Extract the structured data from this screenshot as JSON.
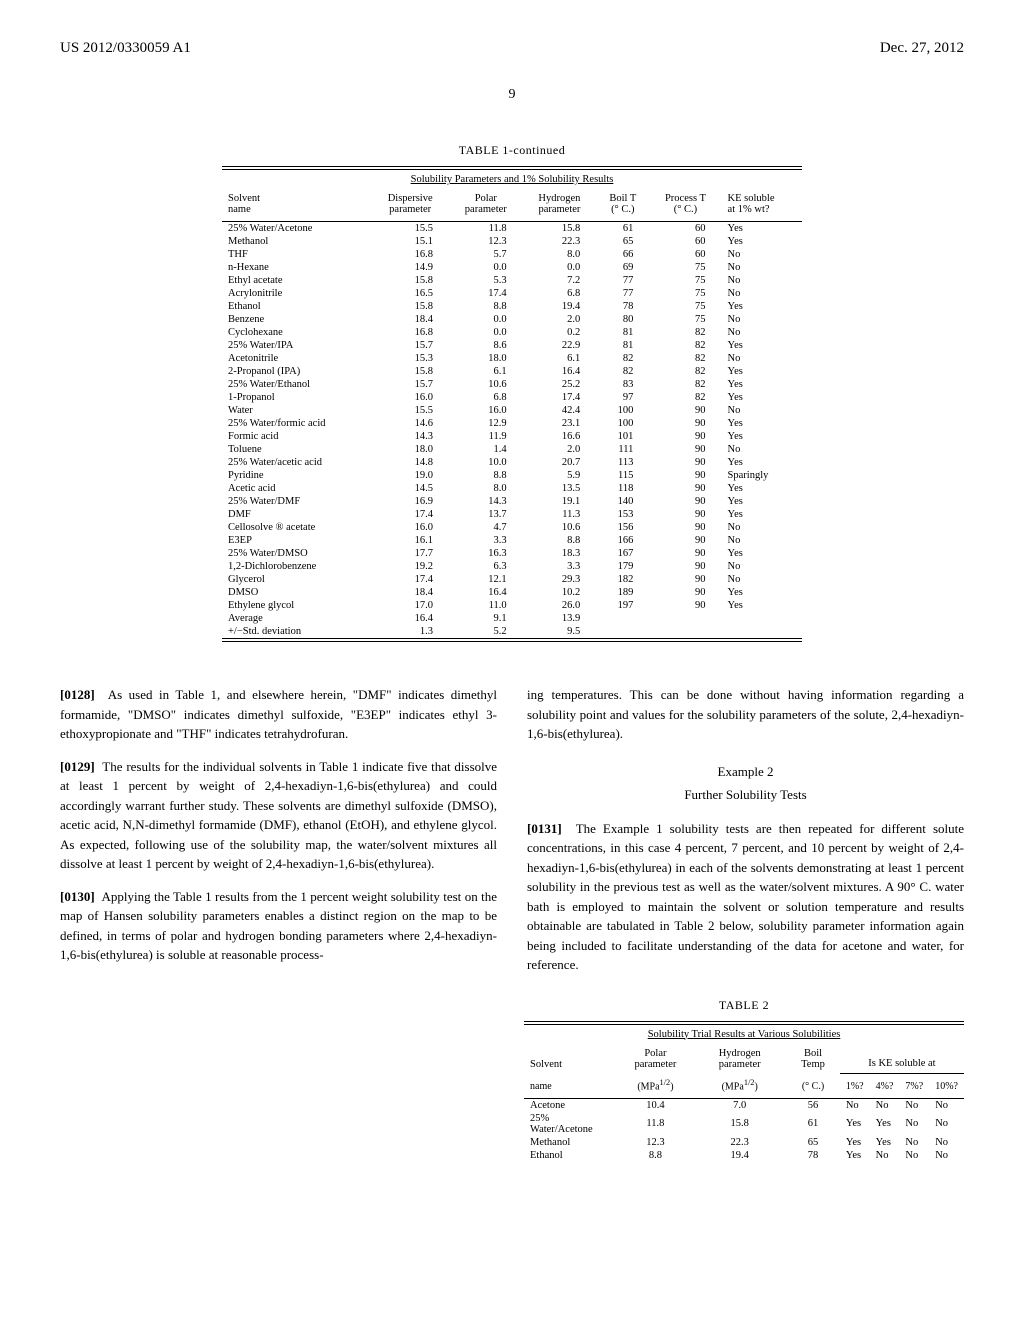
{
  "header": {
    "left": "US 2012/0330059 A1",
    "right": "Dec. 27, 2012"
  },
  "page_number": "9",
  "table1": {
    "title": "TABLE 1-continued",
    "subtitle": "Solubility Parameters and 1% Solubility Results",
    "columns": [
      "Solvent name",
      "Dispersive parameter",
      "Polar parameter",
      "Hydrogen parameter",
      "Boil T (° C.)",
      "Process T (° C.)",
      "KE soluble at 1% wt?"
    ],
    "rows": [
      [
        "25% Water/Acetone",
        "15.5",
        "11.8",
        "15.8",
        "61",
        "60",
        "Yes"
      ],
      [
        "Methanol",
        "15.1",
        "12.3",
        "22.3",
        "65",
        "60",
        "Yes"
      ],
      [
        "THF",
        "16.8",
        "5.7",
        "8.0",
        "66",
        "60",
        "No"
      ],
      [
        "n-Hexane",
        "14.9",
        "0.0",
        "0.0",
        "69",
        "75",
        "No"
      ],
      [
        "Ethyl acetate",
        "15.8",
        "5.3",
        "7.2",
        "77",
        "75",
        "No"
      ],
      [
        "Acrylonitrile",
        "16.5",
        "17.4",
        "6.8",
        "77",
        "75",
        "No"
      ],
      [
        "Ethanol",
        "15.8",
        "8.8",
        "19.4",
        "78",
        "75",
        "Yes"
      ],
      [
        "Benzene",
        "18.4",
        "0.0",
        "2.0",
        "80",
        "75",
        "No"
      ],
      [
        "Cyclohexane",
        "16.8",
        "0.0",
        "0.2",
        "81",
        "82",
        "No"
      ],
      [
        "25% Water/IPA",
        "15.7",
        "8.6",
        "22.9",
        "81",
        "82",
        "Yes"
      ],
      [
        "Acetonitrile",
        "15.3",
        "18.0",
        "6.1",
        "82",
        "82",
        "No"
      ],
      [
        "2-Propanol (IPA)",
        "15.8",
        "6.1",
        "16.4",
        "82",
        "82",
        "Yes"
      ],
      [
        "25% Water/Ethanol",
        "15.7",
        "10.6",
        "25.2",
        "83",
        "82",
        "Yes"
      ],
      [
        "1-Propanol",
        "16.0",
        "6.8",
        "17.4",
        "97",
        "82",
        "Yes"
      ],
      [
        "Water",
        "15.5",
        "16.0",
        "42.4",
        "100",
        "90",
        "No"
      ],
      [
        "25% Water/formic acid",
        "14.6",
        "12.9",
        "23.1",
        "100",
        "90",
        "Yes"
      ],
      [
        "Formic acid",
        "14.3",
        "11.9",
        "16.6",
        "101",
        "90",
        "Yes"
      ],
      [
        "Toluene",
        "18.0",
        "1.4",
        "2.0",
        "111",
        "90",
        "No"
      ],
      [
        "25% Water/acetic acid",
        "14.8",
        "10.0",
        "20.7",
        "113",
        "90",
        "Yes"
      ],
      [
        "Pyridine",
        "19.0",
        "8.8",
        "5.9",
        "115",
        "90",
        "Sparingly"
      ],
      [
        "Acetic acid",
        "14.5",
        "8.0",
        "13.5",
        "118",
        "90",
        "Yes"
      ],
      [
        "25% Water/DMF",
        "16.9",
        "14.3",
        "19.1",
        "140",
        "90",
        "Yes"
      ],
      [
        "DMF",
        "17.4",
        "13.7",
        "11.3",
        "153",
        "90",
        "Yes"
      ],
      [
        "Cellosolve ® acetate",
        "16.0",
        "4.7",
        "10.6",
        "156",
        "90",
        "No"
      ],
      [
        "E3EP",
        "16.1",
        "3.3",
        "8.8",
        "166",
        "90",
        "No"
      ],
      [
        "25% Water/DMSO",
        "17.7",
        "16.3",
        "18.3",
        "167",
        "90",
        "Yes"
      ],
      [
        "1,2-Dichlorobenzene",
        "19.2",
        "6.3",
        "3.3",
        "179",
        "90",
        "No"
      ],
      [
        "Glycerol",
        "17.4",
        "12.1",
        "29.3",
        "182",
        "90",
        "No"
      ],
      [
        "DMSO",
        "18.4",
        "16.4",
        "10.2",
        "189",
        "90",
        "Yes"
      ],
      [
        "Ethylene glycol",
        "17.0",
        "11.0",
        "26.0",
        "197",
        "90",
        "Yes"
      ],
      [
        "Average",
        "16.4",
        "9.1",
        "13.9",
        "",
        "",
        ""
      ],
      [
        "+/−Std. deviation",
        "1.3",
        "5.2",
        "9.5",
        "",
        "",
        ""
      ]
    ]
  },
  "paragraphs": {
    "p0128_num": "[0128]",
    "p0128": "As used in Table 1, and elsewhere herein, \"DMF\" indicates dimethyl formamide, \"DMSO\" indicates dimethyl sulfoxide, \"E3EP\" indicates ethyl 3-ethoxypropionate and \"THF\" indicates tetrahydrofuran.",
    "p0129_num": "[0129]",
    "p0129": "The results for the individual solvents in Table 1 indicate five that dissolve at least 1 percent by weight of 2,4-hexadiyn-1,6-bis(ethylurea) and could accordingly warrant further study. These solvents are dimethyl sulfoxide (DMSO), acetic acid, N,N-dimethyl formamide (DMF), ethanol (EtOH), and ethylene glycol. As expected, following use of the solubility map, the water/solvent mixtures all dissolve at least 1 percent by weight of 2,4-hexadiyn-1,6-bis(ethylurea).",
    "p0130_num": "[0130]",
    "p0130": "Applying the Table 1 results from the 1 percent weight solubility test on the map of Hansen solubility parameters enables a distinct region on the map to be defined, in terms of polar and hydrogen bonding parameters where 2,4-hexadiyn-1,6-bis(ethylurea) is soluble at reasonable process-",
    "p0130_cont": "ing temperatures. This can be done without having information regarding a solubility point and values for the solubility parameters of the solute, 2,4-hexadiyn-1,6-bis(ethylurea).",
    "example2_title": "Example 2",
    "example2_sub": "Further Solubility Tests",
    "p0131_num": "[0131]",
    "p0131": "The Example 1 solubility tests are then repeated for different solute concentrations, in this case 4 percent, 7 percent, and 10 percent by weight of 2,4-hexadiyn-1,6-bis(ethylurea) in each of the solvents demonstrating at least 1 percent solubility in the previous test as well as the water/solvent mixtures. A 90° C. water bath is employed to maintain the solvent or solution temperature and results obtainable are tabulated in Table 2 below, solubility parameter information again being included to facilitate understanding of the data for acetone and water, for reference."
  },
  "table2": {
    "title": "TABLE 2",
    "subtitle": "Solubility Trial Results at Various Solubilities",
    "col_solvent": "Solvent",
    "col_polar": "Polar parameter",
    "col_hydrogen": "Hydrogen parameter",
    "col_boil": "Boil Temp",
    "col_group": "Is KE soluble at",
    "col_name": "name",
    "unit_mpa": "(MPa",
    "unit_sup": "1/2",
    "unit_close": ")",
    "unit_c": "(° C.)",
    "col_1p": "1%?",
    "col_4p": "4%?",
    "col_7p": "7%?",
    "col_10p": "10%?",
    "rows": [
      [
        "Acetone",
        "10.4",
        "7.0",
        "56",
        "No",
        "No",
        "No",
        "No"
      ],
      [
        "25% Water/Acetone",
        "11.8",
        "15.8",
        "61",
        "Yes",
        "Yes",
        "No",
        "No"
      ],
      [
        "Methanol",
        "12.3",
        "22.3",
        "65",
        "Yes",
        "Yes",
        "No",
        "No"
      ],
      [
        "Ethanol",
        "8.8",
        "19.4",
        "78",
        "Yes",
        "No",
        "No",
        "No"
      ]
    ]
  }
}
